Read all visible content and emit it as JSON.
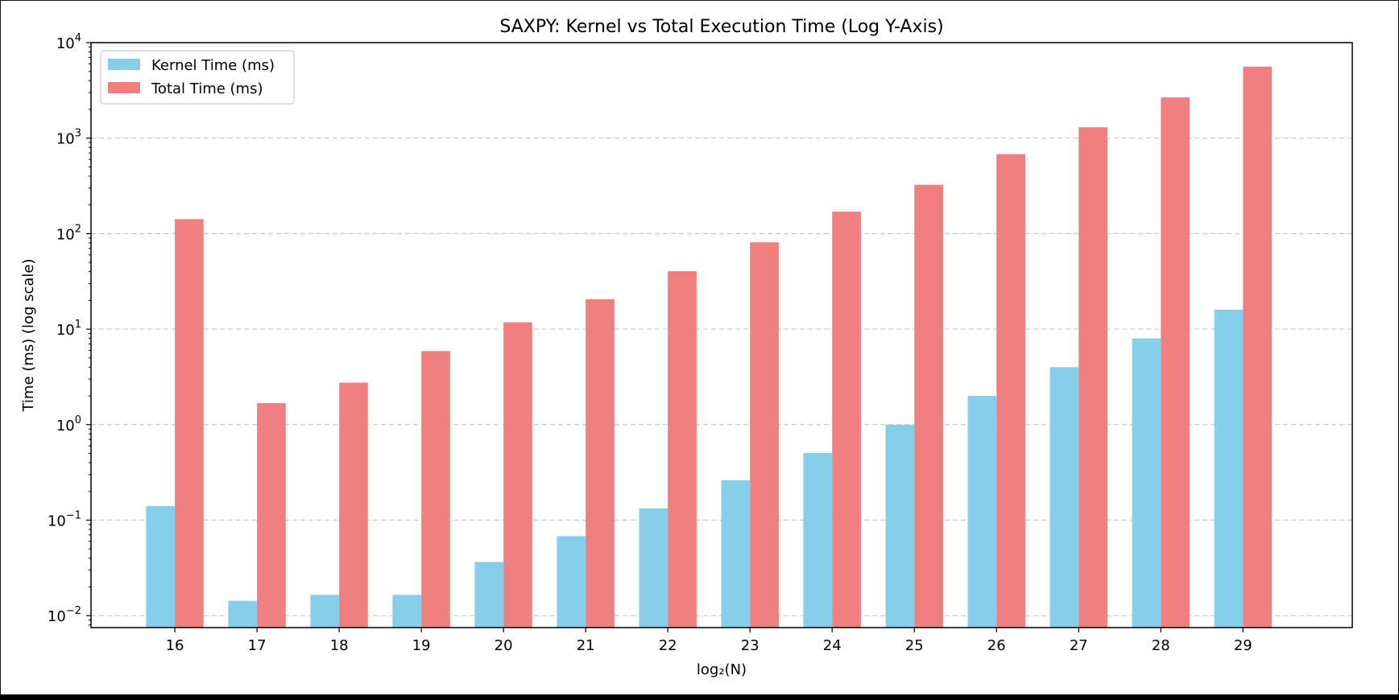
{
  "chart_data": {
    "type": "bar",
    "title": "SAXPY: Kernel vs Total Execution Time (Log Y-Axis)",
    "xlabel": "log₂(N)",
    "ylabel": "Time (ms) (log scale)",
    "yscale": "log",
    "ylim": [
      0.0075,
      10000
    ],
    "yticks": [
      0.01,
      0.1,
      1,
      10,
      100,
      1000,
      10000
    ],
    "ytick_labels": [
      {
        "base": "10",
        "exp": "−2"
      },
      {
        "base": "10",
        "exp": "−1"
      },
      {
        "base": "10",
        "exp": "0"
      },
      {
        "base": "10",
        "exp": "1"
      },
      {
        "base": "10",
        "exp": "2"
      },
      {
        "base": "10",
        "exp": "3"
      },
      {
        "base": "10",
        "exp": "4"
      }
    ],
    "categories": [
      "16",
      "17",
      "18",
      "19",
      "20",
      "21",
      "22",
      "23",
      "24",
      "25",
      "26",
      "27",
      "28",
      "29"
    ],
    "series": [
      {
        "name": "Kernel Time (ms)",
        "color": "#87ceeb",
        "values": [
          0.14,
          0.0143,
          0.0165,
          0.0165,
          0.0365,
          0.068,
          0.133,
          0.262,
          0.505,
          1.0,
          2.0,
          4.0,
          8.0,
          16.0
        ]
      },
      {
        "name": "Total Time (ms)",
        "color": "#f08080",
        "values": [
          142,
          1.68,
          2.75,
          5.9,
          11.8,
          20.6,
          40.5,
          81,
          170,
          325,
          680,
          1300,
          2670,
          5600
        ]
      }
    ],
    "grid": "y-dashed",
    "legend_position": "top-left"
  }
}
